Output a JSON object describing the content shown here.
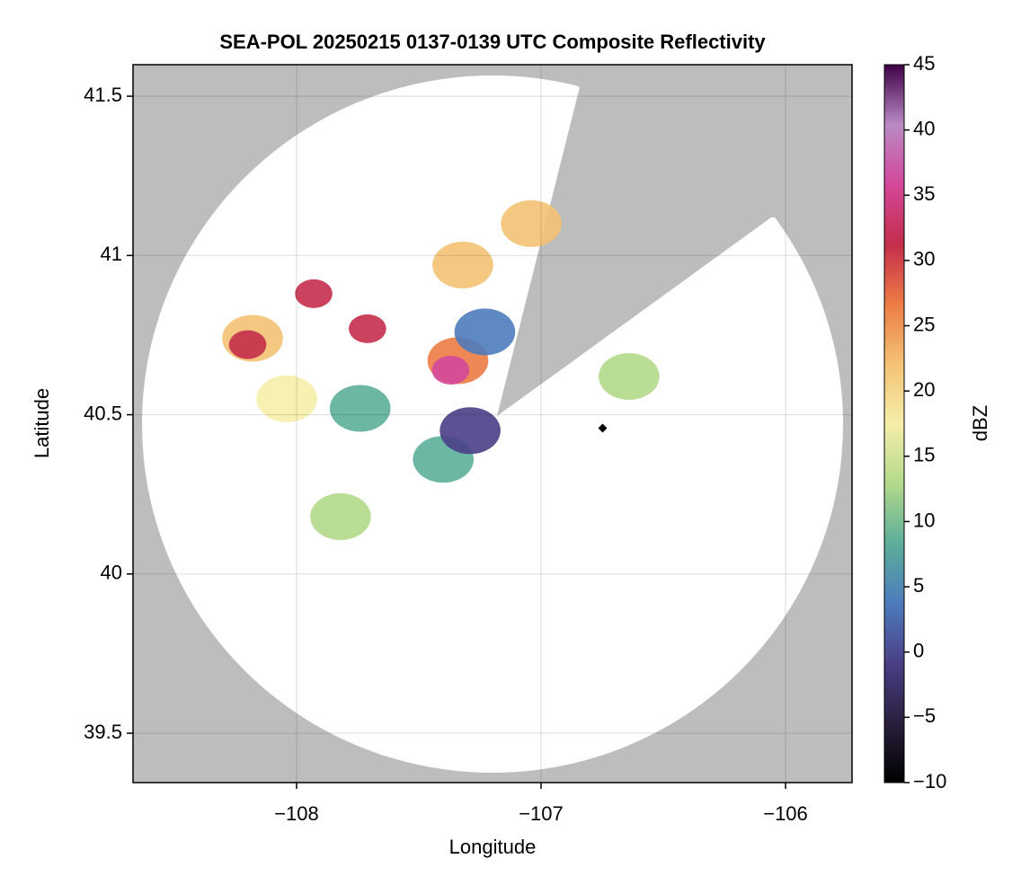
{
  "chart_data": {
    "type": "radar",
    "title": "SEA-POL 20250215 0137-0139 UTC Composite Reflectivity",
    "x_label": "Longitude",
    "y_label": "Latitude",
    "xlim": [
      -108.669,
      -105.728
    ],
    "ylim": [
      39.345,
      41.599
    ],
    "xticks": [
      {
        "value": -108,
        "label": "−108"
      },
      {
        "value": -107,
        "label": "−107"
      },
      {
        "value": -106,
        "label": "−106"
      }
    ],
    "yticks": [
      39.5,
      40.0,
      40.5,
      41.0,
      41.5
    ],
    "grid": true,
    "echoes": {
      "lon": [
        -108.18,
        -108.2,
        -108.04,
        -107.71,
        -107.93,
        -107.34,
        -107.37,
        -107.23,
        -107.32,
        -107.4,
        -107.29,
        -107.82,
        -106.64,
        -107.74,
        -107.04
      ],
      "lat": [
        40.74,
        40.72,
        40.55,
        40.77,
        40.88,
        40.67,
        40.64,
        40.76,
        40.97,
        40.36,
        40.45,
        40.18,
        40.62,
        40.52,
        41.1
      ],
      "dbz": [
        20,
        30,
        19,
        30,
        32,
        27,
        38,
        5,
        20,
        7,
        0,
        15,
        12,
        10,
        20
      ]
    },
    "colorbar": {
      "label": "dBZ",
      "lim": [
        -10,
        45
      ],
      "ticks": [
        {
          "value": -10,
          "label": "−10"
        },
        {
          "value": -5,
          "label": "−5"
        },
        0,
        5,
        10,
        15,
        20,
        25,
        30,
        35,
        40,
        45
      ],
      "colors": [
        "#000000",
        "#2a1f3d",
        "#4a3f87",
        "#4d7cbd",
        "#5cae9a",
        "#b3d98a",
        "#f5eeaa",
        "#f4c274",
        "#ec7c45",
        "#c42d4b",
        "#d3489a",
        "#b98ac4",
        "#3f0046"
      ]
    }
  }
}
